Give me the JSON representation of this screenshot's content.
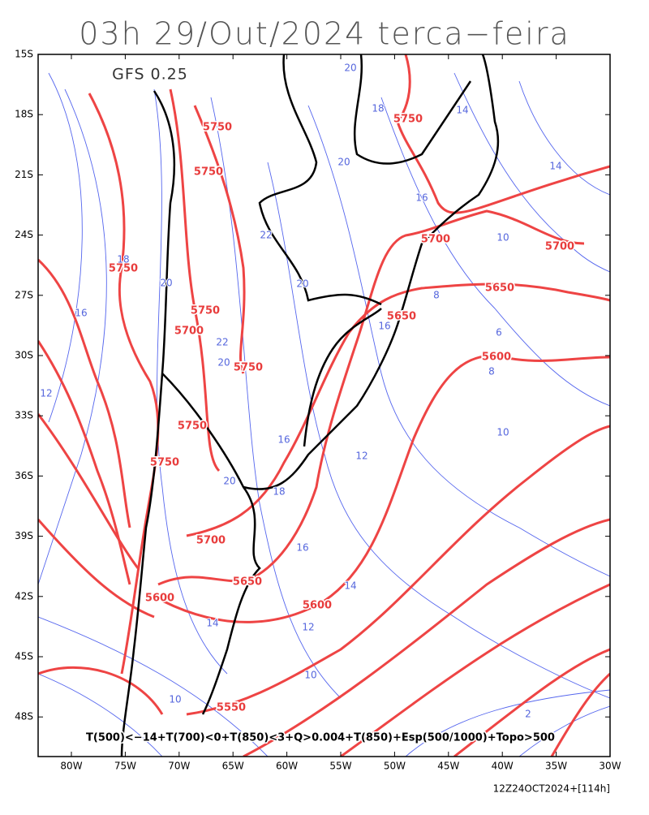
{
  "title": "03h 29/Out/2024 terca−feira",
  "model": "GFS 0.25",
  "lat_labels": [
    "15S",
    "18S",
    "21S",
    "24S",
    "27S",
    "30S",
    "33S",
    "36S",
    "39S",
    "42S",
    "45S",
    "48S"
  ],
  "lon_labels": [
    "80W",
    "75W",
    "70W",
    "65W",
    "60W",
    "55W",
    "50W",
    "45W",
    "40W",
    "35W",
    "30W"
  ],
  "height_labels": [
    "5750",
    "5750",
    "5750",
    "5750",
    "5700",
    "5750",
    "5750",
    "5750",
    "5700",
    "5650",
    "5600",
    "5600",
    "5550",
    "5750",
    "5700",
    "5700",
    "5650",
    "5650",
    "5600"
  ],
  "thickness_labels": [
    "20",
    "18",
    "14",
    "20",
    "14",
    "16",
    "22",
    "10",
    "18",
    "20",
    "20",
    "16",
    "8",
    "22",
    "20",
    "16",
    "6",
    "8",
    "12",
    "16",
    "12",
    "10",
    "20",
    "18",
    "16",
    "14",
    "12",
    "14",
    "10",
    "2",
    "10"
  ],
  "caption": "T(500)<−14+T(700)<0+T(850)<3+Q>0.004+T(850)+Esp(500/1000)+Topo>500",
  "footer": "12Z24OCT2024+[114h]"
}
